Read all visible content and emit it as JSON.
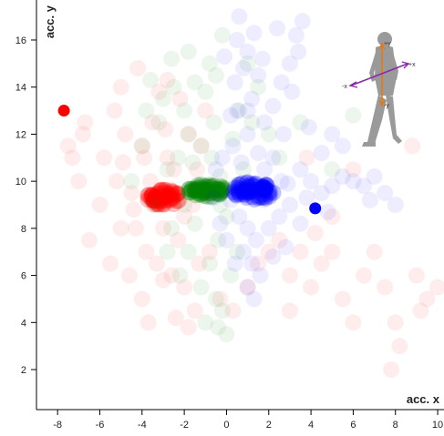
{
  "chart_data": {
    "type": "scatter",
    "title": "",
    "xlabel": "acc. x",
    "ylabel": "acc. y",
    "xlim": [
      -9,
      10.3
    ],
    "ylim": [
      0.3,
      17.7
    ],
    "xticks": [
      -8,
      -6,
      -4,
      -2,
      0,
      2,
      4,
      6,
      8,
      10
    ],
    "yticks": [
      2,
      4,
      6,
      8,
      10,
      12,
      14,
      16
    ],
    "grid": false,
    "legend": "none",
    "series": [
      {
        "color": "#ff0000",
        "cluster": {
          "cx": -3.0,
          "cy": 9.3,
          "rx": 0.8,
          "ry": 0.35,
          "n": 60
        },
        "highlight": {
          "x": -7.7,
          "y": 13.0
        },
        "points": [
          [
            -7.5,
            11.5
          ],
          [
            -6.7,
            12.5
          ],
          [
            -5.8,
            11.0
          ],
          [
            -5.2,
            10.0
          ],
          [
            -4.8,
            12.0
          ],
          [
            -4.5,
            9.5
          ],
          [
            -4.3,
            8.0
          ],
          [
            -4.0,
            11.5
          ],
          [
            -3.8,
            7.0
          ],
          [
            -3.5,
            12.5
          ],
          [
            -3.3,
            6.5
          ],
          [
            -3.0,
            8.0
          ],
          [
            -2.8,
            11.0
          ],
          [
            -2.6,
            6.0
          ],
          [
            -2.5,
            10.5
          ],
          [
            -2.3,
            7.5
          ],
          [
            -2.0,
            5.5
          ],
          [
            -1.8,
            12.0
          ],
          [
            -1.5,
            4.5
          ],
          [
            -1.3,
            6.5
          ],
          [
            -4.0,
            5.0
          ],
          [
            -3.7,
            4.0
          ],
          [
            -5.5,
            6.5
          ],
          [
            -6.0,
            9.0
          ],
          [
            -7.0,
            10.0
          ],
          [
            -2.2,
            13.5
          ],
          [
            -1.0,
            13.0
          ],
          [
            -3.2,
            13.8
          ],
          [
            -5.0,
            14.0
          ],
          [
            -4.2,
            14.8
          ],
          [
            -2.8,
            14.3
          ],
          [
            -1.6,
            9.0
          ],
          [
            -2.0,
            8.5
          ],
          [
            -3.6,
            10.0
          ],
          [
            -4.4,
            8.8
          ],
          [
            -5.0,
            8.0
          ],
          [
            -4.6,
            6.0
          ],
          [
            -3.0,
            5.8
          ],
          [
            -2.4,
            4.2
          ],
          [
            -1.8,
            3.8
          ],
          [
            -6.5,
            7.5
          ],
          [
            -6.8,
            12.0
          ],
          [
            -7.3,
            11.0
          ],
          [
            -3.9,
            11.0
          ],
          [
            -2.9,
            12.2
          ],
          [
            -1.2,
            11.5
          ],
          [
            -0.8,
            7.0
          ],
          [
            -0.3,
            5.0
          ],
          [
            0.3,
            4.5
          ],
          [
            1.0,
            5.5
          ],
          [
            1.5,
            6.5
          ],
          [
            2.0,
            7.0
          ],
          [
            2.5,
            7.5
          ],
          [
            3.0,
            6.0
          ],
          [
            3.5,
            7.0
          ],
          [
            4.0,
            5.5
          ],
          [
            4.5,
            6.5
          ],
          [
            5.0,
            7.0
          ],
          [
            5.5,
            5.0
          ],
          [
            6.0,
            4.0
          ],
          [
            6.5,
            6.0
          ],
          [
            7.0,
            7.0
          ],
          [
            7.5,
            5.5
          ],
          [
            8.0,
            4.0
          ],
          [
            8.2,
            3.0
          ],
          [
            7.8,
            2.0
          ],
          [
            9.0,
            6.0
          ],
          [
            9.5,
            5.0
          ],
          [
            10.0,
            5.5
          ],
          [
            9.2,
            4.5
          ],
          [
            8.8,
            11.5
          ],
          [
            6.0,
            10.5
          ],
          [
            5.0,
            8.5
          ],
          [
            4.2,
            7.8
          ],
          [
            3.0,
            4.5
          ],
          [
            3.8,
            11.0
          ],
          [
            -1.0,
            9.5
          ],
          [
            -1.4,
            10.5
          ],
          [
            -5.3,
            13.0
          ],
          [
            -4.9,
            10.8
          ]
        ]
      },
      {
        "color": "#008000",
        "cluster": {
          "cx": -0.9,
          "cy": 9.6,
          "rx": 0.9,
          "ry": 0.28,
          "n": 60
        },
        "highlight": null,
        "points": [
          [
            -3.0,
            13.5
          ],
          [
            -2.5,
            14.0
          ],
          [
            -2.0,
            13.0
          ],
          [
            -1.5,
            14.2
          ],
          [
            -1.0,
            13.8
          ],
          [
            -0.5,
            14.5
          ],
          [
            -1.8,
            12.0
          ],
          [
            -1.2,
            11.5
          ],
          [
            -0.6,
            12.5
          ],
          [
            -2.3,
            11.0
          ],
          [
            -3.2,
            12.5
          ],
          [
            -3.8,
            13.0
          ],
          [
            -4.0,
            11.5
          ],
          [
            -2.8,
            10.5
          ],
          [
            -1.6,
            10.8
          ],
          [
            -0.7,
            11.0
          ],
          [
            -0.3,
            10.2
          ],
          [
            0.0,
            8.5
          ],
          [
            -0.4,
            7.5
          ],
          [
            -0.8,
            6.5
          ],
          [
            -1.2,
            5.5
          ],
          [
            -0.5,
            5.0
          ],
          [
            -0.2,
            4.5
          ],
          [
            0.2,
            6.0
          ],
          [
            0.5,
            7.0
          ],
          [
            -1.8,
            7.0
          ],
          [
            -2.2,
            6.0
          ],
          [
            -2.6,
            8.0
          ],
          [
            -1.5,
            8.2
          ],
          [
            -1.0,
            4.0
          ],
          [
            -0.4,
            3.8
          ],
          [
            0.0,
            3.5
          ],
          [
            -0.8,
            15.0
          ],
          [
            -1.8,
            15.5
          ],
          [
            -0.2,
            16.2
          ],
          [
            1.0,
            15.0
          ],
          [
            1.5,
            14.0
          ],
          [
            1.2,
            12.5
          ],
          [
            0.6,
            13.0
          ],
          [
            2.0,
            12.0
          ],
          [
            2.5,
            11.0
          ],
          [
            3.5,
            12.5
          ],
          [
            6.0,
            12.8
          ],
          [
            5.0,
            10.5
          ],
          [
            -2.0,
            9.0
          ],
          [
            0.4,
            9.8
          ],
          [
            0.8,
            10.5
          ],
          [
            -0.3,
            9.0
          ],
          [
            -1.3,
            9.8
          ],
          [
            -2.8,
            7.0
          ],
          [
            -3.5,
            9.0
          ],
          [
            -4.5,
            10.0
          ],
          [
            -3.6,
            14.3
          ],
          [
            -2.6,
            15.2
          ],
          [
            0.3,
            11.8
          ]
        ]
      },
      {
        "color": "#0000ff",
        "cluster": {
          "cx": 1.3,
          "cy": 9.6,
          "rx": 1.0,
          "ry": 0.38,
          "n": 70
        },
        "highlight": {
          "x": 4.2,
          "y": 8.85
        },
        "points": [
          [
            0.5,
            16.0
          ],
          [
            1.0,
            15.5
          ],
          [
            1.3,
            16.3
          ],
          [
            0.8,
            14.8
          ],
          [
            1.5,
            14.5
          ],
          [
            1.2,
            13.5
          ],
          [
            0.5,
            13.0
          ],
          [
            1.0,
            12.0
          ],
          [
            0.3,
            11.5
          ],
          [
            0.7,
            10.8
          ],
          [
            1.8,
            12.5
          ],
          [
            2.2,
            13.2
          ],
          [
            2.6,
            14.2
          ],
          [
            3.0,
            15.0
          ],
          [
            3.3,
            16.2
          ],
          [
            3.6,
            16.8
          ],
          [
            3.4,
            15.5
          ],
          [
            2.7,
            12.0
          ],
          [
            2.2,
            11.0
          ],
          [
            1.5,
            11.2
          ],
          [
            0.2,
            12.8
          ],
          [
            -0.2,
            11.0
          ],
          [
            -0.5,
            10.5
          ],
          [
            0.6,
            8.5
          ],
          [
            1.0,
            8.0
          ],
          [
            1.4,
            7.5
          ],
          [
            0.8,
            7.0
          ],
          [
            1.2,
            6.5
          ],
          [
            1.6,
            6.0
          ],
          [
            1.0,
            5.5
          ],
          [
            1.3,
            5.0
          ],
          [
            2.0,
            8.0
          ],
          [
            2.5,
            8.5
          ],
          [
            3.0,
            9.0
          ],
          [
            3.5,
            8.2
          ],
          [
            2.8,
            7.2
          ],
          [
            2.2,
            6.8
          ],
          [
            0.4,
            6.5
          ],
          [
            0.0,
            7.5
          ],
          [
            -0.3,
            8.2
          ],
          [
            3.5,
            10.5
          ],
          [
            4.0,
            10.0
          ],
          [
            4.5,
            9.5
          ],
          [
            5.0,
            9.8
          ],
          [
            5.5,
            10.2
          ],
          [
            6.0,
            10.0
          ],
          [
            6.5,
            9.8
          ],
          [
            7.0,
            10.2
          ],
          [
            7.5,
            9.5
          ],
          [
            8.0,
            9.0
          ],
          [
            5.5,
            11.5
          ],
          [
            5.0,
            12.0
          ],
          [
            4.5,
            11.2
          ],
          [
            3.9,
            12.3
          ],
          [
            1.8,
            10.5
          ],
          [
            2.6,
            10.0
          ],
          [
            -0.6,
            9.3
          ],
          [
            0.2,
            9.2
          ],
          [
            1.8,
            9.2
          ],
          [
            2.9,
            9.9
          ],
          [
            3.8,
            9.3
          ],
          [
            4.8,
            8.7
          ],
          [
            6.8,
            9.2
          ],
          [
            1.0,
            13.0
          ],
          [
            0.4,
            14.2
          ],
          [
            1.7,
            15.2
          ],
          [
            2.4,
            16.5
          ],
          [
            3.1,
            13.8
          ],
          [
            0.6,
            17.0
          ],
          [
            -0.1,
            15.3
          ]
        ]
      }
    ]
  },
  "figure_icon": "walking-person-axes-icon"
}
